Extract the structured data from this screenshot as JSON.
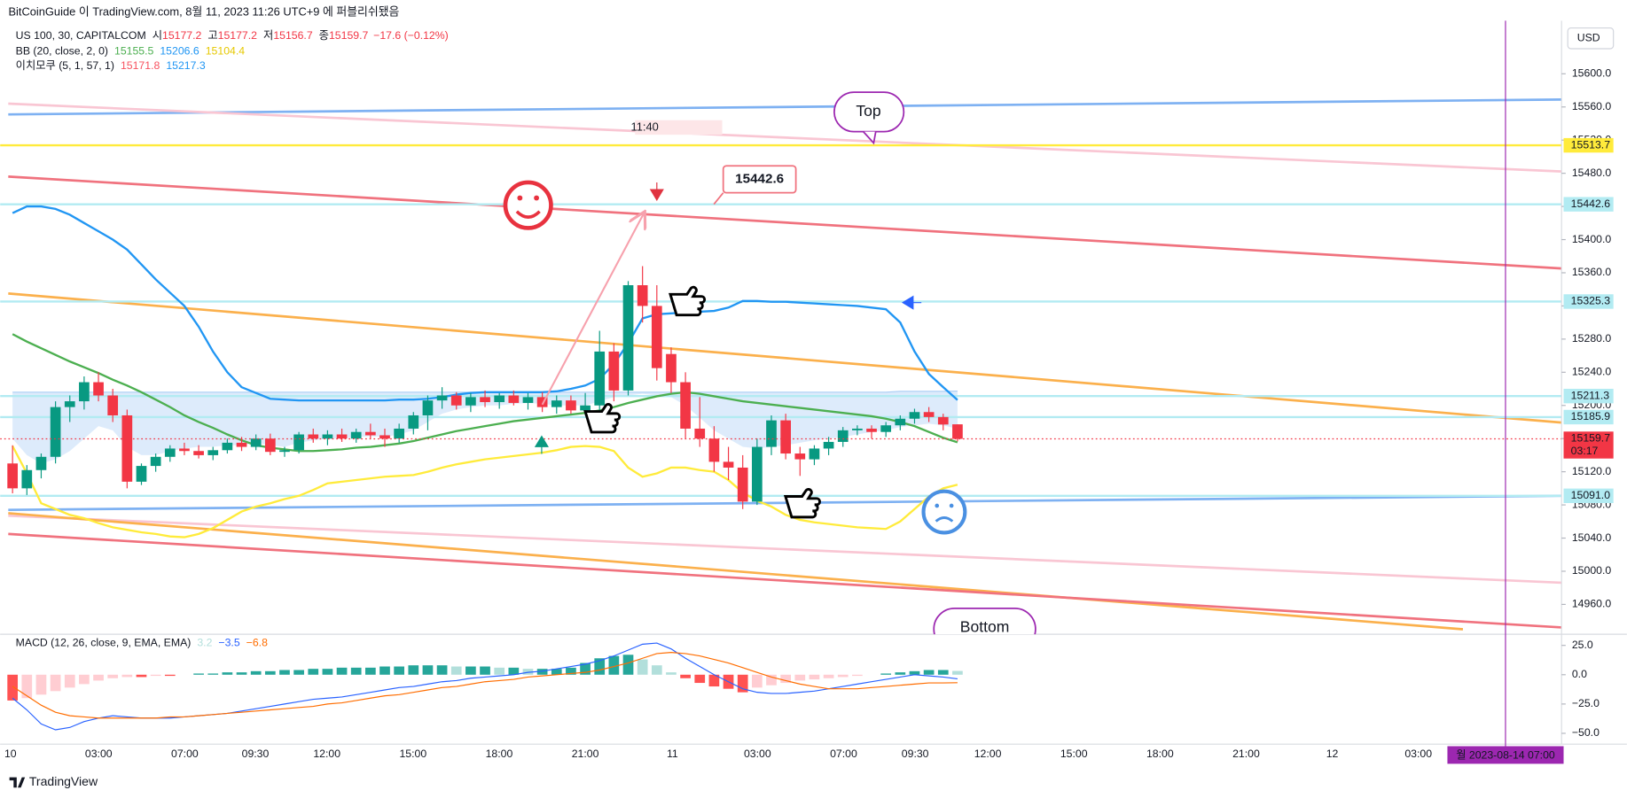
{
  "header": {
    "publisher": "BitCoinGuide 이 TradingView.com, 8월 11, 2023 11:26 UTC+9 에 퍼블리쉬됐음"
  },
  "footer": {
    "brand": "TradingView"
  },
  "chart_data": {
    "type": "candlestick",
    "symbol": "US 100, 30, CAPITALCOM",
    "ohlc_legend": [
      {
        "label": "시",
        "value": 15177.2
      },
      {
        "label": "고",
        "value": 15177.2
      },
      {
        "label": "저",
        "value": 15156.7
      },
      {
        "label": "종",
        "value": 15159.7
      }
    ],
    "change": "−17.6 (−0.12%)",
    "currency": "USD",
    "colors": {
      "up": "#089981",
      "down": "#f23645"
    },
    "ylim": [
      14924,
      15664
    ],
    "yticks": [
      {
        "value": 15600,
        "label": "15600.0"
      },
      {
        "value": 15560,
        "label": "15560.0"
      },
      {
        "value": 15520,
        "label": "15520.0"
      },
      {
        "value": 15480,
        "label": "15480.0"
      },
      {
        "value": 15440,
        "label": "15440.0"
      },
      {
        "value": 15400,
        "label": "15400.0"
      },
      {
        "value": 15360,
        "label": "15360.0"
      },
      {
        "value": 15320,
        "label": "15320.0"
      },
      {
        "value": 15280,
        "label": "15280.0"
      },
      {
        "value": 15240,
        "label": "15240.0"
      },
      {
        "value": 15200,
        "label": "15200.0"
      },
      {
        "value": 15160,
        "label": "15160.0"
      },
      {
        "value": 15120,
        "label": "15120.0"
      },
      {
        "value": 15080,
        "label": "15080.0"
      },
      {
        "value": 15040,
        "label": "15040.0"
      },
      {
        "value": 15000,
        "label": "15000.0"
      },
      {
        "value": 14960,
        "label": "14960.0"
      }
    ],
    "xticks": [
      "10",
      "03:00",
      "07:00",
      "09:30",
      "12:00",
      "15:00",
      "18:00",
      "21:00",
      "11",
      "03:00",
      "07:00",
      "09:30",
      "12:00",
      "15:00",
      "18:00",
      "21:00",
      "12",
      "03:00"
    ],
    "ohlc": [
      [
        15130,
        15152,
        15094,
        15100
      ],
      [
        15100,
        15128,
        15092,
        15122
      ],
      [
        15122,
        15142,
        15112,
        15138
      ],
      [
        15138,
        15205,
        15130,
        15198
      ],
      [
        15198,
        15212,
        15180,
        15205
      ],
      [
        15205,
        15235,
        15195,
        15228
      ],
      [
        15228,
        15240,
        15205,
        15212
      ],
      [
        15212,
        15220,
        15180,
        15188
      ],
      [
        15188,
        15195,
        15100,
        15108
      ],
      [
        15108,
        15130,
        15104,
        15127
      ],
      [
        15127,
        15142,
        15120,
        15138
      ],
      [
        15138,
        15152,
        15132,
        15148
      ],
      [
        15148,
        15155,
        15140,
        15145
      ],
      [
        15145,
        15152,
        15136,
        15140
      ],
      [
        15140,
        15150,
        15134,
        15146
      ],
      [
        15146,
        15160,
        15142,
        15155
      ],
      [
        15155,
        15162,
        15145,
        15150
      ],
      [
        15150,
        15165,
        15146,
        15160
      ],
      [
        15160,
        15166,
        15140,
        15144
      ],
      [
        15144,
        15150,
        15138,
        15146
      ],
      [
        15146,
        15168,
        15142,
        15165
      ],
      [
        15165,
        15172,
        15155,
        15160
      ],
      [
        15160,
        15170,
        15152,
        15165
      ],
      [
        15165,
        15172,
        15156,
        15160
      ],
      [
        15160,
        15172,
        15155,
        15168
      ],
      [
        15168,
        15178,
        15160,
        15164
      ],
      [
        15164,
        15172,
        15150,
        15160
      ],
      [
        15160,
        15178,
        15155,
        15172
      ],
      [
        15172,
        15192,
        15165,
        15188
      ],
      [
        15188,
        15212,
        15170,
        15206
      ],
      [
        15206,
        15222,
        15196,
        15212
      ],
      [
        15212,
        15216,
        15195,
        15200
      ],
      [
        15200,
        15215,
        15192,
        15210
      ],
      [
        15210,
        15218,
        15198,
        15204
      ],
      [
        15204,
        15215,
        15196,
        15212
      ],
      [
        15212,
        15218,
        15200,
        15203
      ],
      [
        15203,
        15215,
        15195,
        15210
      ],
      [
        15210,
        15216,
        15192,
        15198
      ],
      [
        15198,
        15212,
        15190,
        15206
      ],
      [
        15206,
        15212,
        15190,
        15194
      ],
      [
        15194,
        15215,
        15188,
        15200
      ],
      [
        15200,
        15290,
        15190,
        15265
      ],
      [
        15265,
        15275,
        15205,
        15218
      ],
      [
        15218,
        15350,
        15212,
        15345
      ],
      [
        15345,
        15368,
        15300,
        15320
      ],
      [
        15320,
        15345,
        15230,
        15245
      ],
      [
        15262,
        15270,
        15215,
        15228
      ],
      [
        15228,
        15240,
        15160,
        15172
      ],
      [
        15172,
        15210,
        15150,
        15160
      ],
      [
        15160,
        15175,
        15120,
        15132
      ],
      [
        15132,
        15150,
        15110,
        15125
      ],
      [
        15125,
        15140,
        15075,
        15084
      ],
      [
        15084,
        15160,
        15080,
        15150
      ],
      [
        15150,
        15188,
        15140,
        15182
      ],
      [
        15182,
        15190,
        15135,
        15142
      ],
      [
        15142,
        15150,
        15115,
        15135
      ],
      [
        15135,
        15152,
        15128,
        15148
      ],
      [
        15148,
        15162,
        15140,
        15156
      ],
      [
        15156,
        15174,
        15150,
        15170
      ],
      [
        15170,
        15176,
        15164,
        15172
      ],
      [
        15172,
        15176,
        15160,
        15168
      ],
      [
        15168,
        15180,
        15162,
        15176
      ],
      [
        15176,
        15188,
        15170,
        15184
      ],
      [
        15184,
        15196,
        15178,
        15192
      ],
      [
        15192,
        15198,
        15180,
        15186
      ],
      [
        15186,
        15190,
        15170,
        15177
      ],
      [
        15177.2,
        15177.2,
        15156.7,
        15159.7
      ]
    ],
    "last_price": {
      "value": 15159.7,
      "countdown": "03:17",
      "color": "#f23645"
    },
    "bb": {
      "label": "BB (20, close, 2, 0)",
      "basis": {
        "color": "#4caf50",
        "legend": 15155.5,
        "values": [
          15286,
          15277,
          15269,
          15261,
          15253,
          15246,
          15239,
          15231,
          15224,
          15216,
          15207,
          15198,
          15188,
          15180,
          15173,
          15165,
          15158,
          15152,
          15149,
          15147,
          15145,
          15145,
          15146,
          15147,
          15149,
          15150,
          15152,
          15154,
          15157,
          15161,
          15165,
          15169,
          15172,
          15175,
          15178,
          15181,
          15183,
          15185,
          15187,
          15189,
          15191,
          15194,
          15198,
          15203,
          15207,
          15211,
          15214,
          15216,
          15214,
          15211,
          15208,
          15205,
          15203,
          15201,
          15199,
          15197,
          15195,
          15193,
          15191,
          15189,
          15187,
          15184,
          15180,
          15175,
          15168,
          15161,
          15155.5
        ]
      },
      "upper": {
        "color": "#2196f3",
        "legend": 15206.6,
        "values": [
          15432,
          15440,
          15440,
          15437,
          15430,
          15420,
          15410,
          15400,
          15388,
          15370,
          15352,
          15336,
          15320,
          15295,
          15265,
          15240,
          15222,
          15215,
          15208,
          15207,
          15206,
          15206,
          15206,
          15206,
          15206,
          15206,
          15206,
          15207,
          15207,
          15208,
          15210,
          15213,
          15215,
          15216,
          15216,
          15216,
          15216,
          15216,
          15217,
          15220,
          15224,
          15232,
          15250,
          15275,
          15305,
          15310,
          15311,
          15312,
          15313,
          15314,
          15318,
          15326,
          15326,
          15325,
          15325,
          15324,
          15323,
          15322,
          15321,
          15320,
          15318,
          15316,
          15300,
          15265,
          15238,
          15222,
          15206.6
        ]
      },
      "lower": {
        "color": "#ffeb3b",
        "legend": 15104.4,
        "values": [
          15151,
          15118,
          15082,
          15075,
          15068,
          15064,
          15058,
          15053,
          15050,
          15047,
          15045,
          15042,
          15041,
          15045,
          15052,
          15062,
          15072,
          15078,
          15082,
          15087,
          15091,
          15098,
          15106,
          15108,
          15110,
          15112,
          15114,
          15115,
          15116,
          15120,
          15125,
          15129,
          15132,
          15135,
          15137,
          15139,
          15141,
          15143,
          15146,
          15150,
          15151,
          15150,
          15145,
          15125,
          15114,
          15118,
          15125,
          15125,
          15122,
          15120,
          15110,
          15095,
          15085,
          15078,
          15068,
          15062,
          15059,
          15057,
          15055,
          15053,
          15052,
          15051,
          15060,
          15075,
          15090,
          15100,
          15104.4
        ]
      }
    },
    "ichimoku": {
      "label": "이치모쿠 (5, 1, 57, 1)",
      "fill": "#cfe3fa",
      "span_b": {
        "color": "#f7525f",
        "legend": 15171.8,
        "values": [
          15160,
          15140,
          15130,
          15135,
          15145,
          15160,
          15175,
          15170,
          15150,
          15140,
          15140,
          15145,
          15148,
          15150,
          15150,
          15152,
          15152,
          15155,
          15152,
          15150,
          15155,
          15158,
          15160,
          15160,
          15162,
          15163,
          15162,
          15165,
          15170,
          15180,
          15190,
          15195,
          15198,
          15200,
          15200,
          15202,
          15203,
          15202,
          15200,
          15200,
          15200,
          15205,
          15210,
          15212,
          15214,
          15212,
          15210,
          15200,
          15185,
          15170,
          15160,
          15150,
          15148,
          15150,
          15152,
          15155,
          15158,
          15160,
          15162,
          15165,
          15168,
          15170,
          15174,
          15176,
          15178,
          15176,
          15171.8
        ]
      },
      "span_a": {
        "color": "#2196f3",
        "legend": 15217.3,
        "values": [
          15216,
          15216,
          15216,
          15216,
          15216,
          15216,
          15216,
          15216,
          15216,
          15216,
          15216,
          15216,
          15216,
          15216,
          15216,
          15216,
          15216,
          15216,
          15216,
          15216,
          15216,
          15216,
          15216,
          15216,
          15216,
          15216,
          15216,
          15216,
          15216,
          15216,
          15216,
          15216,
          15216,
          15216,
          15216,
          15216,
          15216,
          15216,
          15216,
          15216,
          15216,
          15216,
          15216,
          15216,
          15216,
          15216,
          15216,
          15216,
          15216,
          15216,
          15216,
          15216,
          15216,
          15216,
          15216,
          15216,
          15216,
          15216,
          15216,
          15216,
          15216,
          15216,
          15217,
          15217,
          15217,
          15217,
          15217.3
        ]
      }
    },
    "trendlines": [
      {
        "x": [
          -0.3,
          108.4
        ],
        "y": [
          15551,
          15569
        ],
        "color": "#7eb1f2"
      },
      {
        "x": [
          -0.3,
          108.4
        ],
        "y": [
          15564,
          15482
        ],
        "color": "#f9c6d3"
      },
      {
        "x": [
          -0.3,
          108.4
        ],
        "y": [
          15476,
          15365
        ],
        "color": "#f0727e"
      },
      {
        "x": [
          -0.3,
          108.4
        ],
        "y": [
          15335,
          15179
        ],
        "color": "#fbb04c"
      },
      {
        "x": [
          -0.3,
          108.4
        ],
        "y": [
          15074,
          15091
        ],
        "color": "#7eb1f2"
      },
      {
        "x": [
          -0.3,
          108.4
        ],
        "y": [
          15067,
          14986
        ],
        "color": "#f9c6d3"
      },
      {
        "x": [
          -0.3,
          101.3
        ],
        "y": [
          15070,
          14930
        ],
        "color": "#fbb04c"
      },
      {
        "x": [
          -0.3,
          108.4
        ],
        "y": [
          15045,
          14932
        ],
        "color": "#f0727e"
      }
    ],
    "hlines": [
      {
        "value": 15513.7,
        "color": "#ffeb3b"
      },
      {
        "value": 15442.6,
        "color": "#b2ebf2"
      },
      {
        "value": 15325.3,
        "color": "#b2ebf2"
      },
      {
        "value": 15211.3,
        "color": "#b2ebf2"
      },
      {
        "value": 15185.9,
        "color": "#b2ebf2"
      },
      {
        "value": 15091,
        "label": "15091.0",
        "color": "#b2ebf2"
      }
    ],
    "arrow": {
      "x": [
        37,
        44.1
      ],
      "y": [
        15201,
        15432
      ],
      "color": "#f7a1ad"
    },
    "annotations": {
      "time_label": "11:40",
      "price_callout": "15442.6",
      "top": "Top",
      "bottom": "Bottom"
    },
    "crosshair": {
      "label": "월 2023-08-14  07:00"
    },
    "macd": {
      "label": "MACD (12, 26, close, 9, EMA, EMA)",
      "legend": [
        {
          "value": 3.2,
          "color": "#b2dfdb"
        },
        {
          "value": -3.5,
          "label": "−3.5",
          "color": "#2962ff"
        },
        {
          "value": -6.8,
          "label": "−6.8",
          "color": "#ff6d00"
        }
      ],
      "ylim": [
        -59.2,
        34.5
      ],
      "yticks": [
        {
          "value": 25,
          "label": "25.0"
        },
        {
          "value": 0,
          "label": "0.0"
        },
        {
          "value": -25,
          "label": "−25.0"
        },
        {
          "value": -50,
          "label": "−50.0"
        }
      ],
      "colors": {
        "up": "#26a69a",
        "up_fade": "#b2dfdb",
        "down": "#ff5252",
        "down_fade": "#ffcdd2"
      },
      "hist": [
        -22,
        -20,
        -17,
        -14,
        -11,
        -8,
        -5,
        -3,
        -2,
        -2,
        -1,
        -1,
        0,
        1,
        1,
        2,
        2,
        3,
        3,
        4,
        4,
        5,
        5,
        6,
        6,
        6,
        7,
        7,
        8,
        8,
        8,
        7,
        7,
        7,
        6,
        6,
        5,
        5,
        5,
        6,
        10,
        14,
        16,
        17,
        13,
        8,
        2,
        -3,
        -7,
        -10,
        -12,
        -15,
        -11,
        -9,
        -7,
        -5,
        -4,
        -3,
        -2,
        -1,
        0,
        1,
        2,
        3,
        4,
        4,
        3.2
      ],
      "macd": {
        "color": "#2962ff",
        "values": [
          -20,
          -30,
          -42,
          -47,
          -45,
          -40,
          -37,
          -35,
          -36,
          -37,
          -37,
          -37,
          -36,
          -35,
          -34,
          -33,
          -31,
          -29,
          -27,
          -25,
          -23,
          -21,
          -20,
          -19,
          -17,
          -15,
          -13,
          -11,
          -10,
          -8,
          -6,
          -5,
          -3,
          -2,
          -1,
          0,
          2,
          3,
          5,
          7,
          9,
          12,
          16,
          21,
          26,
          27,
          22,
          14,
          7,
          0,
          -6,
          -12,
          -15,
          -16,
          -16,
          -15,
          -14,
          -12,
          -10,
          -8,
          -6,
          -4,
          -2,
          0,
          -1,
          -2,
          -3.5
        ]
      },
      "signal": {
        "color": "#ff6d00",
        "values": [
          -10,
          -18,
          -26,
          -32,
          -35,
          -36,
          -37,
          -37,
          -37,
          -37,
          -37,
          -36,
          -36,
          -35,
          -34,
          -33,
          -32,
          -31,
          -30,
          -29,
          -28,
          -27,
          -25,
          -24,
          -22,
          -20,
          -18,
          -17,
          -15,
          -13,
          -11,
          -10,
          -8,
          -6,
          -5,
          -4,
          -2,
          -1,
          0,
          1,
          2,
          4,
          7,
          10,
          14,
          18,
          19,
          18,
          16,
          13,
          10,
          6,
          2,
          -2,
          -5,
          -8,
          -10,
          -12,
          -12,
          -12,
          -11,
          -10,
          -9,
          -8,
          -7,
          -7,
          -6.8
        ]
      }
    }
  }
}
